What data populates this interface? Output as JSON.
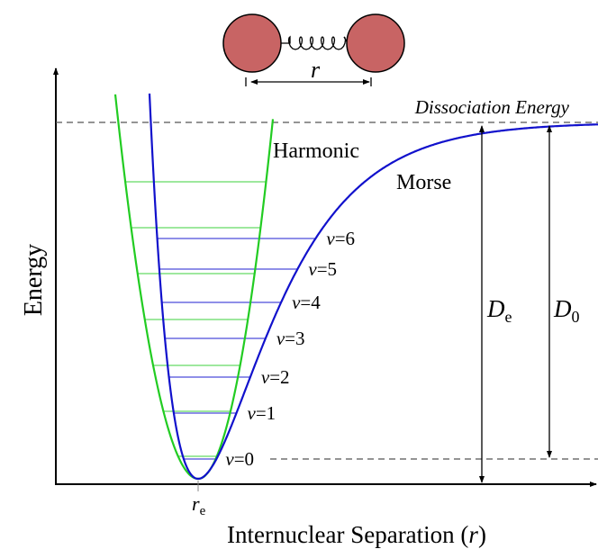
{
  "molecule": {
    "separation_label": "r",
    "atom_color": "#c86464"
  },
  "labels": {
    "dissociation": "Dissociation Energy",
    "harmonic": "Harmonic",
    "morse": "Morse",
    "De_main": "D",
    "De_sub": "e",
    "D0_main": "D",
    "D0_sub": "0",
    "y_axis": "Energy",
    "x_axis": "Internuclear Separation (",
    "x_axis_var": "r",
    "x_axis_close": ")",
    "re_main": "r",
    "re_sub": "e"
  },
  "levels": [
    {
      "v_label": "v",
      "eq": "=0"
    },
    {
      "v_label": "v",
      "eq": "=1"
    },
    {
      "v_label": "v",
      "eq": "=2"
    },
    {
      "v_label": "v",
      "eq": "=3"
    },
    {
      "v_label": "v",
      "eq": "=4"
    },
    {
      "v_label": "v",
      "eq": "=5"
    },
    {
      "v_label": "v",
      "eq": "=6"
    }
  ],
  "colors": {
    "harmonic": "#22cc22",
    "morse": "#1111cc",
    "harmonic_level": "#7fe07f",
    "morse_level": "#6a6ae0",
    "axis": "#000000"
  }
}
